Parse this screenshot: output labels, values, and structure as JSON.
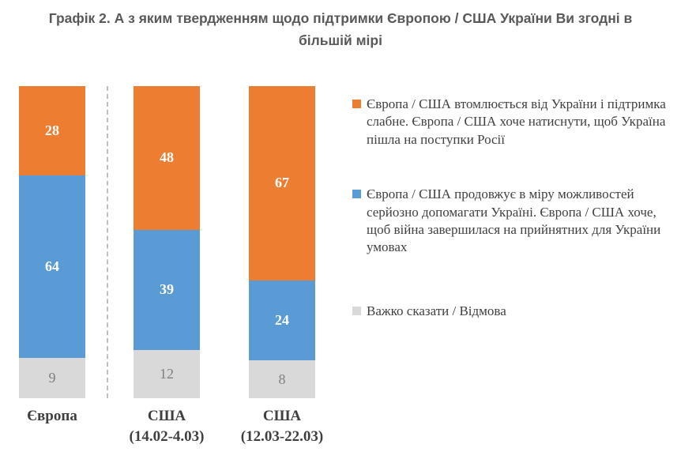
{
  "title": "Графік 2. А з яким твердженням щодо підтримки Європою / США України Ви згодні в більшій мірі",
  "colors": {
    "orange": "#ED7D31",
    "blue": "#5B9BD5",
    "gray": "#D9D9D9",
    "title_text": "#595959",
    "category_text": "#3F3F3F",
    "legend_text": "#404040",
    "muted_value_text": "#7F7F7F",
    "value_text_on_fill": "#FFFFFF",
    "divider": "#BFBFBF"
  },
  "chart_data": {
    "type": "bar",
    "stacked": true,
    "percent_scaled": true,
    "grid": false,
    "legend_position": "right",
    "title": "Графік 2. А з яким твердженням щодо підтримки Європою / США України Ви згодні в більшій мірі",
    "xlabel": "",
    "ylabel": "",
    "categories": [
      {
        "id": "europe",
        "label_lines": [
          "Європа"
        ]
      },
      {
        "id": "usa-feb",
        "label_lines": [
          "США",
          "(14.02-4.03)"
        ]
      },
      {
        "id": "usa-mar",
        "label_lines": [
          "США",
          "(12.03-22.03)"
        ]
      }
    ],
    "series": [
      {
        "id": "support-weakening",
        "label": "Європа / США втомлюється від України і підтримка слабне. Європа / США хоче натиснути, щоб Україна пішла на поступки Росії",
        "color": "#ED7D31",
        "value_text_color": "#FFFFFF",
        "values": [
          28,
          48,
          67
        ]
      },
      {
        "id": "keeps-helping",
        "label": "Європа / США продовжує в міру можливостей серйозно допомагати Україні. Європа / США хоче, щоб війна завершилася на прийнятних для України умовах",
        "color": "#5B9BD5",
        "value_text_color": "#FFFFFF",
        "values": [
          64,
          39,
          24
        ]
      },
      {
        "id": "hard-to-say",
        "label": "Важко сказати / Відмова",
        "color": "#D9D9D9",
        "value_text_color": "#7F7F7F",
        "values": [
          9,
          12,
          8
        ]
      }
    ]
  }
}
